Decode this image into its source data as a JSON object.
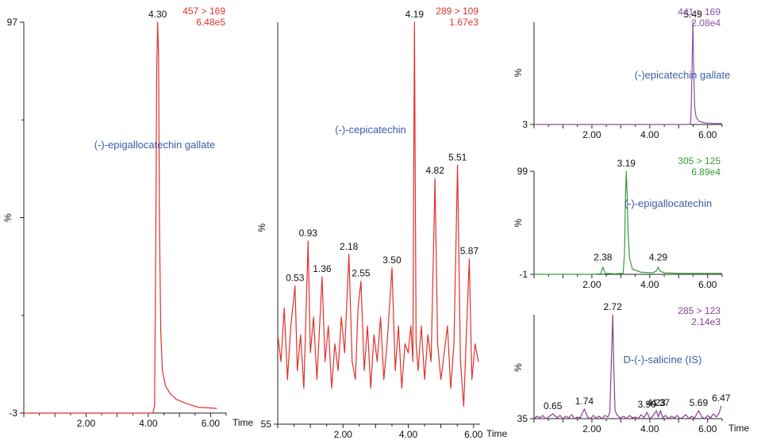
{
  "chart_data": [
    {
      "type": "line",
      "channel": "457 > 169",
      "intensity": "6.48e5",
      "compound": "(-)-epigallocatechin gallate",
      "xlabel": "Time",
      "ylabel": "%",
      "x_ticks": [
        "2.00",
        "4.00",
        "6.00"
      ],
      "y_tick_labels": [
        "97",
        "-3"
      ],
      "xlim": [
        0.0,
        6.5
      ],
      "ylim": [
        -3,
        97
      ],
      "color": "#e0302b",
      "label_color": "#3a5ba8",
      "peak_labels": [
        {
          "x": 4.3,
          "text": "4.30",
          "y": 97
        }
      ],
      "series": [
        {
          "x": [
            0.0,
            4.15,
            4.2,
            4.24,
            4.27,
            4.3,
            4.33,
            4.36,
            4.4,
            4.45,
            4.55,
            4.7,
            4.9,
            5.2,
            5.6,
            6.2
          ],
          "y": [
            -3,
            -3,
            -1,
            40,
            85,
            97,
            88,
            45,
            18,
            8,
            4,
            2,
            0.5,
            -0.5,
            -1.5,
            -1.8
          ]
        }
      ]
    },
    {
      "type": "line",
      "channel": "289 > 109",
      "intensity": "1.67e3",
      "compound": "(-)-cepicatechin",
      "xlabel": "Time",
      "ylabel": "%",
      "x_ticks": [
        "2.00",
        "4.00",
        "6.00"
      ],
      "y_tick_labels": [
        "55"
      ],
      "xlim": [
        0.0,
        6.2
      ],
      "ylim": [
        55,
        100
      ],
      "color": "#e0302b",
      "label_color": "#3a5ba8",
      "peak_labels": [
        {
          "x": 0.53,
          "text": "0.53",
          "y": 70.5
        },
        {
          "x": 0.93,
          "text": "0.93",
          "y": 75.5
        },
        {
          "x": 1.36,
          "text": "1.36",
          "y": 71.5
        },
        {
          "x": 2.18,
          "text": "2.18",
          "y": 74.0
        },
        {
          "x": 2.55,
          "text": "2.55",
          "y": 71.0
        },
        {
          "x": 3.5,
          "text": "3.50",
          "y": 72.5
        },
        {
          "x": 4.19,
          "text": "4.19",
          "y": 100
        },
        {
          "x": 4.82,
          "text": "4.82",
          "y": 82.5
        },
        {
          "x": 5.51,
          "text": "5.51",
          "y": 84.0
        },
        {
          "x": 5.87,
          "text": "5.87",
          "y": 73.5
        }
      ],
      "series": [
        {
          "x": [
            0.0,
            0.1,
            0.2,
            0.3,
            0.4,
            0.53,
            0.6,
            0.7,
            0.8,
            0.93,
            1.0,
            1.1,
            1.2,
            1.36,
            1.45,
            1.55,
            1.65,
            1.75,
            1.85,
            1.95,
            2.05,
            2.18,
            2.28,
            2.38,
            2.46,
            2.55,
            2.65,
            2.75,
            2.85,
            2.95,
            3.05,
            3.15,
            3.25,
            3.35,
            3.5,
            3.6,
            3.7,
            3.8,
            3.9,
            4.0,
            4.08,
            4.14,
            4.19,
            4.24,
            4.3,
            4.4,
            4.5,
            4.6,
            4.7,
            4.82,
            4.9,
            5.0,
            5.1,
            5.2,
            5.3,
            5.4,
            5.51,
            5.6,
            5.7,
            5.78,
            5.87,
            5.95,
            6.05,
            6.15
          ],
          "y": [
            65,
            62,
            68,
            60,
            66,
            70.5,
            61,
            65,
            59,
            75.5,
            63,
            67,
            60,
            71.5,
            62,
            66,
            59,
            64,
            61,
            67,
            63,
            74.0,
            62,
            60,
            68,
            71.0,
            61,
            66,
            59,
            65,
            62,
            67,
            60,
            64,
            72.5,
            61,
            66,
            59,
            64,
            63,
            66,
            62,
            100,
            64,
            61,
            66,
            60,
            65,
            62,
            82.5,
            64,
            60,
            63,
            66,
            59,
            64,
            84.0,
            62,
            57,
            65,
            73.5,
            60,
            64,
            62
          ]
        }
      ]
    },
    {
      "type": "line",
      "channel": "441 > 169",
      "intensity": "2.08e4",
      "compound": "(-)epicatechin gallate",
      "xlabel": "",
      "ylabel": "%",
      "x_ticks": [
        "2.00",
        "4.00",
        "6.00"
      ],
      "y_tick_labels": [
        "3"
      ],
      "xlim": [
        0.0,
        6.5
      ],
      "ylim": [
        3,
        100
      ],
      "color": "#8b4fa8",
      "label_color": "#3a5ba8",
      "peak_labels": [
        {
          "x": 5.49,
          "text": "5.49",
          "y": 100
        }
      ],
      "series": [
        {
          "x": [
            0.0,
            5.38,
            5.42,
            5.45,
            5.49,
            5.52,
            5.55,
            5.6,
            5.7,
            5.9,
            6.2,
            6.5
          ],
          "y": [
            3,
            3,
            6,
            40,
            100,
            55,
            20,
            10,
            6,
            4.5,
            4,
            4
          ]
        }
      ]
    },
    {
      "type": "line",
      "channel": "305 > 125",
      "intensity": "6.89e4",
      "compound": "(-)-epigallocatechin",
      "xlabel": "",
      "ylabel": "%",
      "x_ticks": [
        "2.00",
        "4.00",
        "6.00"
      ],
      "y_tick_labels": [
        "99",
        "-1"
      ],
      "xlim": [
        0.0,
        6.5
      ],
      "ylim": [
        -1,
        99
      ],
      "color": "#3b9a3a",
      "label_color": "#3a5ba8",
      "peak_labels": [
        {
          "x": 2.38,
          "text": "2.38",
          "y": 8
        },
        {
          "x": 3.19,
          "text": "3.19",
          "y": 99
        },
        {
          "x": 4.29,
          "text": "4.29",
          "y": 8
        }
      ],
      "series": [
        {
          "x": [
            0.0,
            1.0,
            2.0,
            2.3,
            2.38,
            2.46,
            2.8,
            3.08,
            3.13,
            3.16,
            3.19,
            3.22,
            3.25,
            3.3,
            3.4,
            3.7,
            4.1,
            4.22,
            4.29,
            4.36,
            4.5,
            5.0,
            5.5,
            6.0,
            6.5
          ],
          "y": [
            -1,
            -1,
            -1,
            -0.5,
            6,
            0,
            -0.5,
            0,
            20,
            75,
            99,
            75,
            40,
            15,
            4,
            1,
            0.5,
            2,
            6,
            2,
            0.5,
            0,
            0,
            0,
            0
          ]
        }
      ]
    },
    {
      "type": "line",
      "channel": "285 > 123",
      "intensity": "2.14e3",
      "compound": "D-(-)-salicine (IS)",
      "xlabel": "Time",
      "ylabel": "%",
      "x_ticks": [
        "2.00",
        "4.00",
        "6.00"
      ],
      "y_tick_labels": [
        "35"
      ],
      "xlim": [
        0.0,
        6.5
      ],
      "ylim": [
        35,
        100
      ],
      "color": "#8b3f8f",
      "label_color": "#3a5ba8",
      "peak_labels": [
        {
          "x": 0.65,
          "text": "0.65",
          "y": 38
        },
        {
          "x": 1.74,
          "text": "1.74",
          "y": 41
        },
        {
          "x": 2.72,
          "text": "2.72",
          "y": 100
        },
        {
          "x": 3.9,
          "text": "3.90",
          "y": 39
        },
        {
          "x": 4.23,
          "text": "4.23",
          "y": 40
        },
        {
          "x": 4.37,
          "text": "4.37",
          "y": 40
        },
        {
          "x": 5.69,
          "text": "5.69",
          "y": 40
        },
        {
          "x": 6.47,
          "text": "6.47",
          "y": 43
        }
      ],
      "series": [
        {
          "x": [
            0.0,
            0.1,
            0.2,
            0.3,
            0.4,
            0.5,
            0.65,
            0.8,
            0.9,
            1.0,
            1.1,
            1.2,
            1.3,
            1.4,
            1.5,
            1.6,
            1.74,
            1.85,
            1.95,
            2.05,
            2.15,
            2.25,
            2.35,
            2.45,
            2.55,
            2.62,
            2.67,
            2.72,
            2.76,
            2.8,
            2.88,
            2.98,
            3.1,
            3.2,
            3.3,
            3.4,
            3.5,
            3.6,
            3.7,
            3.8,
            3.9,
            4.0,
            4.1,
            4.23,
            4.3,
            4.37,
            4.45,
            4.55,
            4.65,
            4.75,
            4.85,
            4.95,
            5.05,
            5.15,
            5.25,
            5.35,
            5.45,
            5.55,
            5.69,
            5.8,
            5.9,
            6.0,
            6.1,
            6.2,
            6.3,
            6.4,
            6.47
          ],
          "y": [
            35,
            36.5,
            35.5,
            37,
            35,
            36,
            38,
            35.5,
            37,
            35,
            36.5,
            35.5,
            37.5,
            35,
            36,
            35.5,
            41,
            36,
            35,
            37,
            35.5,
            36.5,
            35,
            37,
            36,
            39,
            70,
            100,
            65,
            40,
            37,
            35.5,
            36.5,
            35,
            37,
            35.5,
            36,
            35,
            37.5,
            35.5,
            39,
            35,
            36.5,
            40,
            36,
            40,
            35.5,
            37,
            35,
            36.5,
            35.5,
            37,
            35,
            36,
            37.5,
            35,
            36.5,
            35.5,
            40,
            36,
            35,
            37,
            35.5,
            38,
            36,
            38.5,
            43
          ]
        }
      ]
    }
  ]
}
